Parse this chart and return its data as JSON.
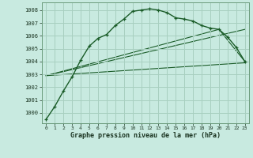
{
  "main_line": {
    "x": [
      0,
      1,
      2,
      3,
      4,
      5,
      6,
      7,
      8,
      9,
      10,
      11,
      12,
      13,
      14,
      15,
      16,
      17,
      18,
      19,
      20,
      21,
      22,
      23
    ],
    "y": [
      999.5,
      1000.5,
      1001.7,
      1002.8,
      1004.1,
      1005.2,
      1005.8,
      1006.1,
      1006.8,
      1007.3,
      1007.9,
      1008.0,
      1008.1,
      1008.0,
      1007.8,
      1007.4,
      1007.3,
      1007.15,
      1006.8,
      1006.6,
      1006.5,
      1005.9,
      1005.1,
      1004.0
    ]
  },
  "line_straight1": {
    "x": [
      0,
      23
    ],
    "y": [
      1002.9,
      1003.9
    ]
  },
  "line_straight2": {
    "x": [
      0,
      20,
      23
    ],
    "y": [
      1002.9,
      1006.5,
      1004.0
    ]
  },
  "line_straight3": {
    "x": [
      0,
      23
    ],
    "y": [
      1002.9,
      1006.5
    ]
  },
  "bg_color": "#c8eae0",
  "grid_color": "#a8cfc0",
  "line_color": "#1a5c28",
  "ylabel_values": [
    1000,
    1001,
    1002,
    1003,
    1004,
    1005,
    1006,
    1007,
    1008
  ],
  "xlabel": "Graphe pression niveau de la mer (hPa)",
  "ylim": [
    999.2,
    1008.6
  ],
  "xlim": [
    -0.5,
    23.5
  ]
}
